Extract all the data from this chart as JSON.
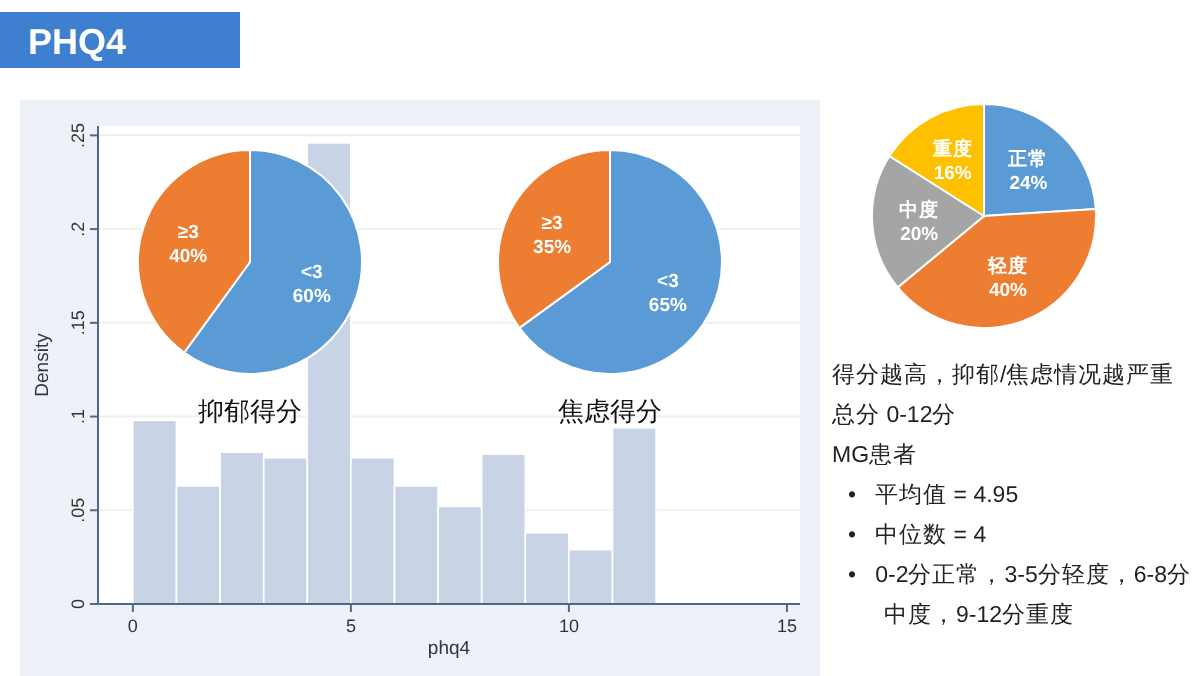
{
  "chart_data": [
    {
      "type": "histogram",
      "title": "PHQ4",
      "xlabel": "phq4",
      "ylabel": "Density",
      "bins": [
        0,
        1,
        2,
        3,
        4,
        5,
        6,
        7,
        8,
        9,
        10,
        11,
        12
      ],
      "values": [
        0.098,
        0.063,
        0.081,
        0.078,
        0.246,
        0.078,
        0.063,
        0.052,
        0.08,
        0.038,
        0.029,
        0.094
      ],
      "color": "#c9d3e6",
      "xlim": [
        -0.8,
        15.3
      ],
      "ylim": [
        0,
        0.255
      ],
      "xticks": [
        0,
        5,
        10,
        15
      ],
      "yticks": [
        0,
        {
          "value": 0.05,
          "label": ".05"
        },
        {
          "value": 0.1,
          "label": ".1"
        },
        {
          "value": 0.15,
          "label": ".15"
        },
        {
          "value": 0.2,
          "label": ".2"
        },
        {
          "value": 0.25,
          "label": ".25"
        }
      ],
      "grid": "y"
    },
    {
      "type": "pie",
      "title": "抑郁得分",
      "categories": [
        "<3",
        "≥3"
      ],
      "values": [
        60,
        40
      ],
      "value_labels": [
        "60%",
        "40%"
      ],
      "colors": [
        "#5b9bd5",
        "#ed7d31"
      ]
    },
    {
      "type": "pie",
      "title": "焦虑得分",
      "categories": [
        "<3",
        "≥3"
      ],
      "values": [
        65,
        35
      ],
      "value_labels": [
        "65%",
        "35%"
      ],
      "colors": [
        "#5b9bd5",
        "#ed7d31"
      ]
    },
    {
      "type": "pie",
      "categories": [
        "正常",
        "轻度",
        "中度",
        "重度"
      ],
      "values": [
        24,
        40,
        20,
        16
      ],
      "value_labels": [
        "24%",
        "40%",
        "20%",
        "16%"
      ],
      "colors": [
        "#5b9bd5",
        "#ed7d31",
        "#a5a5a5",
        "#ffc000"
      ]
    },
    {
      "type": "other",
      "annotations": [
        "得分越高，抑郁/焦虑情况越严重",
        "总分 0-12分",
        "MG患者",
        "•   平均值 = 4.95",
        "•   中位数 = 4",
        "•   0-2分正常，3-5分轻度，6-8分中度，9-12分重度"
      ]
    }
  ]
}
